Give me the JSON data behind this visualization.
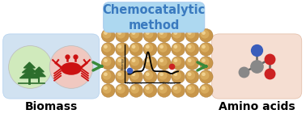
{
  "title": "Chemocatalytic\nmethod",
  "title_color": "#3a7abf",
  "title_bg": "#add8f0",
  "biomass_label": "Biomass",
  "amino_label": "Amino acids",
  "bg_color": "#ffffff",
  "biomass_box_color": "#ccdff0",
  "amino_box_color": "#f5ddd0",
  "catalyst_box_color": "#c5e0f0",
  "tree_circle_color": "#d0eabc",
  "crab_circle_color": "#f0c8c0",
  "tree_color": "#2d6e2d",
  "crab_color": "#cc1111",
  "arrow_color": "#3a8a3a",
  "sphere_base": "#c8964a",
  "sphere_light": "#e8c070",
  "sphere_highlight": "#f5d898",
  "sphere_shadow": "#a07030",
  "label_fontsize": 10,
  "title_fontsize": 10.5,
  "mol_grey": "#888888",
  "mol_blue": "#3a5dbb",
  "mol_red": "#cc2222",
  "mol_bond": "#666666"
}
